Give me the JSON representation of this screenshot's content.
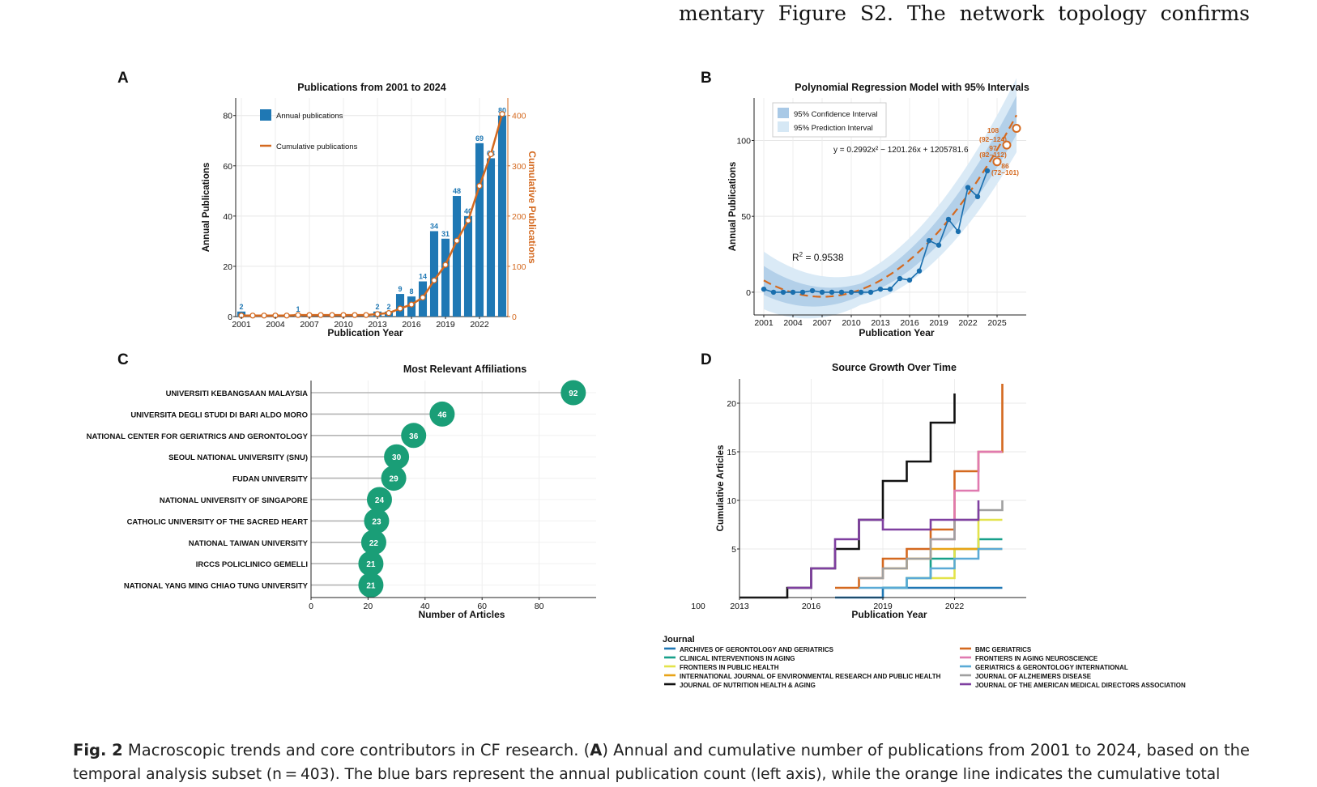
{
  "page": {
    "top_text": "mentary Figure S2. The network topology confirms",
    "caption": {
      "fig_label": "Fig. 2",
      "line1_pre": " Macroscopic trends and core contributors in CF research. (",
      "line1_bold": "A",
      "line1_post": ") Annual and cumulative number of publications from 2001 to 2024, based on the",
      "line2": "temporal analysis subset (n = 403). The blue bars represent the annual publication count (left axis), while the orange line indicates the cumulative total"
    }
  },
  "panels": {
    "A": "A",
    "B": "B",
    "C": "C",
    "D": "D"
  },
  "chart_data": [
    {
      "id": "A",
      "type": "bar",
      "title": "Publications from 2001 to 2024",
      "xlabel": "Publication Year",
      "ylabel": "Annual Publications",
      "y2label": "Cumulative Publications",
      "ylim": [
        0,
        87
      ],
      "y2lim": [
        0,
        435
      ],
      "yticks": [
        0,
        20,
        40,
        60,
        80
      ],
      "y2ticks": [
        0,
        100,
        200,
        300,
        400
      ],
      "xticks": [
        "2001",
        "2004",
        "2007",
        "2010",
        "2013",
        "2016",
        "2019",
        "2022"
      ],
      "categories": [
        "2001",
        "2002",
        "2003",
        "2004",
        "2005",
        "2006",
        "2007",
        "2008",
        "2009",
        "2010",
        "2011",
        "2012",
        "2013",
        "2014",
        "2015",
        "2016",
        "2017",
        "2018",
        "2019",
        "2020",
        "2021",
        "2022",
        "2023",
        "2024"
      ],
      "series": [
        {
          "name": "Annual publications",
          "values": [
            2,
            0,
            0,
            0,
            0,
            1,
            0,
            0,
            0,
            0,
            0,
            0,
            2,
            2,
            9,
            8,
            14,
            34,
            31,
            48,
            40,
            69,
            63,
            80
          ],
          "color": "#1f78b4"
        },
        {
          "name": "Cumulative publications",
          "values": [
            2,
            2,
            2,
            2,
            2,
            3,
            3,
            3,
            3,
            3,
            3,
            3,
            5,
            7,
            16,
            24,
            38,
            72,
            103,
            151,
            191,
            260,
            323,
            403
          ],
          "color": "#d4691f"
        }
      ],
      "data_labels": [
        "2",
        "",
        "",
        "",
        "",
        "1",
        "",
        "",
        "",
        "",
        "",
        "",
        "2",
        "2",
        "9",
        "8",
        "14",
        "34",
        "31",
        "48",
        "40",
        "69",
        "63",
        "80"
      ],
      "legend": "top-left",
      "grid": true
    },
    {
      "id": "B",
      "type": "line",
      "title": "Polynomial Regression Model with 95% Intervals",
      "xlabel": "Publication Year",
      "ylabel": "Annual Publications",
      "xlim": [
        2000,
        2028
      ],
      "ylim": [
        -15,
        128
      ],
      "xticks": [
        "2001",
        "2004",
        "2007",
        "2010",
        "2013",
        "2016",
        "2019",
        "2022",
        "2025"
      ],
      "yticks": [
        0,
        50,
        100
      ],
      "equation": "y = 0.2992x² − 1201.26x + 1205781.6",
      "r2_label": "R",
      "r2_sup": "2",
      "r2_value": " = 0.9538",
      "legend": [
        "95% Confidence Interval",
        "95% Prediction Interval"
      ],
      "observed": {
        "x": [
          2001,
          2002,
          2003,
          2004,
          2005,
          2006,
          2007,
          2008,
          2009,
          2010,
          2011,
          2012,
          2013,
          2014,
          2015,
          2016,
          2017,
          2018,
          2019,
          2020,
          2021,
          2022,
          2023,
          2024
        ],
        "y": [
          2,
          0,
          0,
          0,
          0,
          1,
          0,
          0,
          0,
          0,
          0,
          0,
          2,
          2,
          9,
          8,
          14,
          34,
          31,
          48,
          40,
          69,
          63,
          80
        ]
      },
      "predictions": [
        {
          "year": 2025,
          "value": "86",
          "range": "(72–101)"
        },
        {
          "year": 2026,
          "value": "97",
          "range": "(82–112)"
        },
        {
          "year": 2027,
          "value": "108",
          "range": "(92–124)"
        }
      ],
      "colors": {
        "observed": "#1a6fae",
        "fit": "#d4691f",
        "ci": "#a9c9e6",
        "pi": "#d6e8f5"
      },
      "grid": true
    },
    {
      "id": "C",
      "type": "scatter",
      "title": "Most Relevant Affiliations",
      "xlabel": "Number of Articles",
      "xlim": [
        0,
        100
      ],
      "xticks": [
        0,
        20,
        40,
        60,
        80
      ],
      "categories": [
        "UNIVERSITI KEBANGSAAN MALAYSIA",
        "UNIVERSITA DEGLI STUDI DI BARI ALDO MORO",
        "NATIONAL CENTER FOR GERIATRICS AND GERONTOLOGY",
        "SEOUL NATIONAL UNIVERSITY (SNU)",
        "FUDAN UNIVERSITY",
        "NATIONAL UNIVERSITY OF SINGAPORE",
        "CATHOLIC UNIVERSITY OF THE SACRED HEART",
        "NATIONAL TAIWAN UNIVERSITY",
        "IRCCS POLICLINICO GEMELLI",
        "NATIONAL YANG MING CHIAO TUNG UNIVERSITY"
      ],
      "values": [
        92,
        46,
        36,
        30,
        29,
        24,
        23,
        22,
        21,
        21
      ],
      "color": "#1a9e77",
      "grid": true
    },
    {
      "id": "D",
      "type": "line",
      "title": "Source Growth Over Time",
      "xlabel": "Publication Year",
      "ylabel": "Cumulative Articles",
      "xlim": [
        2013,
        2025
      ],
      "ylim": [
        0,
        22.5
      ],
      "xticks": [
        "2013",
        "2016",
        "2019",
        "2022"
      ],
      "yticks": [
        5,
        10,
        15,
        20
      ],
      "stray_label": "100",
      "legend_title": "Journal",
      "legend_columns": 2,
      "series": [
        {
          "name": "ARCHIVES OF GERONTOLOGY AND GERIATRICS",
          "color": "#1f77b4",
          "x": [
            2017,
            2019,
            2024
          ],
          "y": [
            0,
            1,
            1
          ]
        },
        {
          "name": "CLINICAL INTERVENTIONS IN AGING",
          "color": "#17a08a",
          "x": [
            2019,
            2020,
            2021,
            2022,
            2023,
            2024
          ],
          "y": [
            1,
            2,
            4,
            5,
            6,
            6
          ]
        },
        {
          "name": "FRONTIERS IN PUBLIC HEALTH",
          "color": "#e3e34a",
          "x": [
            2020,
            2022,
            2023,
            2024
          ],
          "y": [
            2,
            5,
            8,
            8
          ]
        },
        {
          "name": "INTERNATIONAL JOURNAL OF ENVIRONMENTAL RESEARCH AND PUBLIC HEALTH",
          "color": "#e8a317",
          "x": [
            2019,
            2020,
            2021,
            2022,
            2023,
            2024
          ],
          "y": [
            3,
            4,
            5,
            5,
            5,
            5
          ]
        },
        {
          "name": "JOURNAL OF NUTRITION HEALTH & AGING",
          "color": "#111111",
          "x": [
            2013,
            2015,
            2016,
            2017,
            2018,
            2019,
            2020,
            2021,
            2022
          ],
          "y": [
            0,
            1,
            3,
            5,
            8,
            12,
            14,
            18,
            21
          ]
        },
        {
          "name": "BMC GERIATRICS",
          "color": "#d4691f",
          "x": [
            2017,
            2018,
            2019,
            2020,
            2021,
            2022,
            2023,
            2024
          ],
          "y": [
            1,
            2,
            4,
            5,
            7,
            13,
            15,
            22
          ]
        },
        {
          "name": "FRONTIERS IN AGING NEUROSCIENCE",
          "color": "#e07ab0",
          "x": [
            2021,
            2022,
            2023,
            2024
          ],
          "y": [
            6,
            11,
            15,
            15
          ]
        },
        {
          "name": "GERIATRICS & GERONTOLOGY INTERNATIONAL",
          "color": "#5aaad6",
          "x": [
            2018,
            2020,
            2021,
            2022,
            2023,
            2024
          ],
          "y": [
            1,
            2,
            3,
            4,
            5,
            5
          ]
        },
        {
          "name": "JOURNAL OF ALZHEIMERS DISEASE",
          "color": "#a0a0a0",
          "x": [
            2018,
            2019,
            2020,
            2021,
            2022,
            2023,
            2024
          ],
          "y": [
            2,
            3,
            4,
            6,
            8,
            9,
            10
          ]
        },
        {
          "name": "JOURNAL OF THE AMERICAN MEDICAL DIRECTORS ASSOCIATION",
          "color": "#7f3fa0",
          "x": [
            2015,
            2016,
            2017,
            2018,
            2019,
            2021,
            2022,
            2023
          ],
          "y": [
            1,
            3,
            6,
            8,
            7,
            8,
            8,
            10
          ]
        }
      ],
      "grid": true
    }
  ]
}
